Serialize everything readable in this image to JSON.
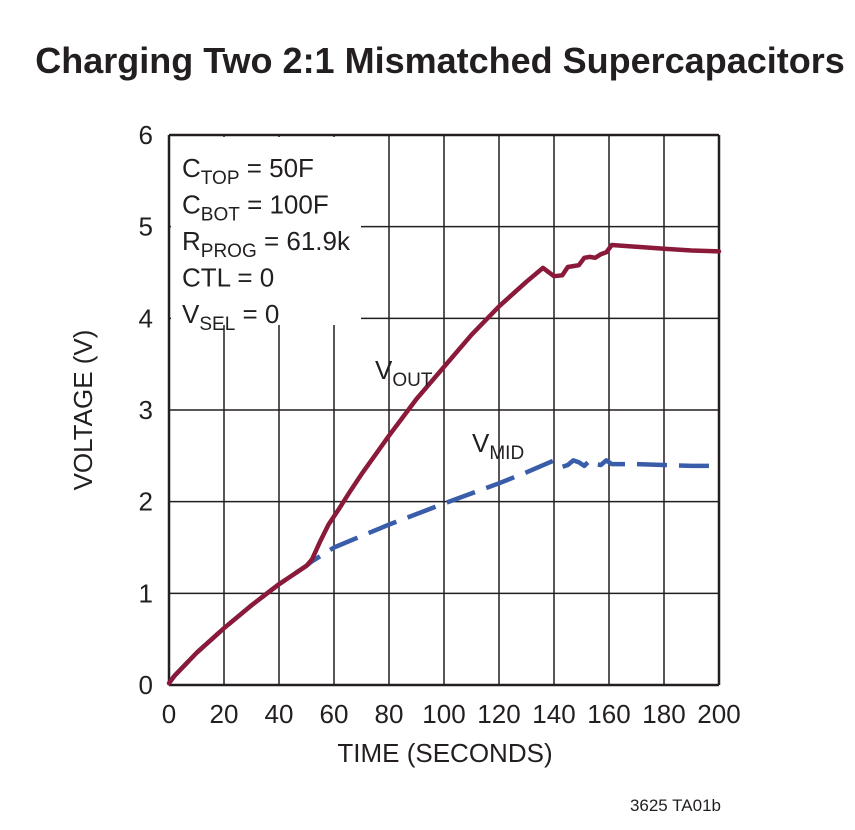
{
  "chart_data": {
    "type": "line",
    "title": "Charging Two 2:1 Mismatched Supercapacitors",
    "xlabel": "TIME (SECONDS)",
    "ylabel": "VOLTAGE (V)",
    "xlim": [
      0,
      200
    ],
    "ylim": [
      0,
      6
    ],
    "x_ticks": [
      "0",
      "20",
      "40",
      "60",
      "80",
      "100",
      "120",
      "140",
      "160",
      "180",
      "200"
    ],
    "y_ticks": [
      "0",
      "1",
      "2",
      "3",
      "4",
      "5",
      "6"
    ],
    "grid": true,
    "annotations": [
      {
        "main": "C",
        "sub": "TOP",
        "rest": " = 50F"
      },
      {
        "main": "C",
        "sub": "BOT",
        "rest": " = 100F"
      },
      {
        "main": "R",
        "sub": "PROG",
        "rest": " = 61.9k"
      },
      {
        "main": "CTL = 0",
        "sub": "",
        "rest": ""
      },
      {
        "main": "V",
        "sub": "SEL",
        "rest": " = 0"
      }
    ],
    "series": [
      {
        "name": "VOUT",
        "label_main": "V",
        "label_sub": "OUT",
        "color": "#8b1a3a",
        "style": "solid",
        "x": [
          0,
          2,
          10,
          20,
          30,
          40,
          50,
          52,
          55,
          58,
          62,
          66,
          70,
          80,
          90,
          100,
          110,
          120,
          130,
          136,
          140,
          143,
          145,
          147,
          149,
          151,
          153,
          155,
          157,
          159,
          161,
          170,
          180,
          190,
          200
        ],
        "y": [
          0.02,
          0.1,
          0.35,
          0.62,
          0.87,
          1.1,
          1.3,
          1.37,
          1.57,
          1.75,
          1.93,
          2.12,
          2.3,
          2.72,
          3.12,
          3.47,
          3.82,
          4.13,
          4.4,
          4.55,
          4.46,
          4.47,
          4.56,
          4.57,
          4.58,
          4.66,
          4.67,
          4.66,
          4.7,
          4.72,
          4.8,
          4.78,
          4.76,
          4.74,
          4.73
        ]
      },
      {
        "name": "VMID",
        "label_main": "V",
        "label_sub": "MID",
        "color": "#3a5daa",
        "style": "dashed",
        "x": [
          0,
          2,
          10,
          20,
          30,
          40,
          50,
          52,
          60,
          80,
          100,
          120,
          130,
          140,
          143,
          145,
          147,
          149,
          151,
          153,
          155,
          157,
          159,
          161,
          170,
          180,
          190,
          200
        ],
        "y": [
          0.02,
          0.1,
          0.35,
          0.62,
          0.87,
          1.1,
          1.3,
          1.35,
          1.5,
          1.75,
          1.98,
          2.2,
          2.32,
          2.45,
          2.38,
          2.4,
          2.45,
          2.43,
          2.39,
          2.45,
          2.41,
          2.4,
          2.45,
          2.41,
          2.41,
          2.4,
          2.39,
          2.39
        ]
      }
    ]
  },
  "footer_code": "3625 TA01b"
}
